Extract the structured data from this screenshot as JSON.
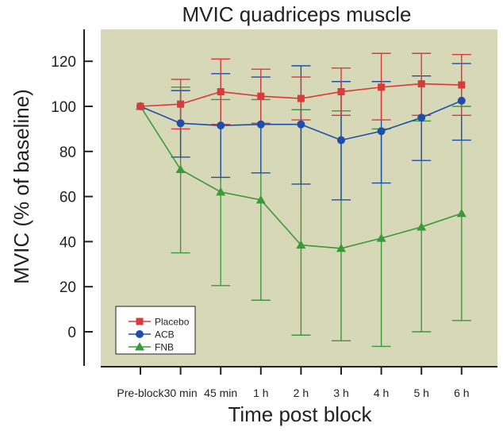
{
  "chart_data": {
    "type": "line",
    "title": "MVIC quadriceps muscle",
    "xlabel": "Time post block",
    "ylabel": "MVIC (% of baseline)",
    "categories": [
      "Pre-block",
      "30 min",
      "45 min",
      "1 h",
      "2 h",
      "3 h",
      "4 h",
      "5 h",
      "6 h"
    ],
    "yticks": [
      0,
      20,
      40,
      60,
      80,
      100,
      120
    ],
    "ylim": [
      -15,
      135
    ],
    "grid": false,
    "legend_position": "bottom-left",
    "background_color": "#d7d8b8",
    "series": [
      {
        "name": "Placebo",
        "color": "#d93a3a",
        "marker": "square",
        "values": [
          100,
          101,
          106.5,
          104.5,
          103.5,
          106.5,
          108.5,
          110,
          109.5
        ],
        "err_upper": [
          null,
          112,
          121,
          116.5,
          113,
          117,
          123.5,
          123.5,
          123
        ],
        "err_lower": [
          null,
          90,
          92,
          92.5,
          94,
          96,
          94,
          96,
          96
        ]
      },
      {
        "name": "ACB",
        "color": "#1f4ea8",
        "marker": "circle",
        "values": [
          100,
          92.5,
          91.5,
          92,
          92,
          85,
          89,
          95,
          102.5
        ],
        "err_upper": [
          null,
          107,
          114.5,
          113,
          118,
          111,
          111,
          113.5,
          119
        ],
        "err_lower": [
          null,
          77.5,
          68.5,
          70.5,
          65.5,
          58.5,
          66,
          76,
          85
        ]
      },
      {
        "name": "FNB",
        "color": "#3a9a3a",
        "marker": "triangle",
        "values": [
          100,
          72,
          62,
          58.5,
          38.5,
          37,
          41.5,
          46.5,
          52.5
        ],
        "err_upper": [
          null,
          108.5,
          103,
          103,
          98.5,
          98,
          90,
          93.5,
          100
        ],
        "err_lower": [
          null,
          35,
          20.5,
          14,
          -1.5,
          -4,
          -6.5,
          0,
          5
        ]
      }
    ]
  }
}
